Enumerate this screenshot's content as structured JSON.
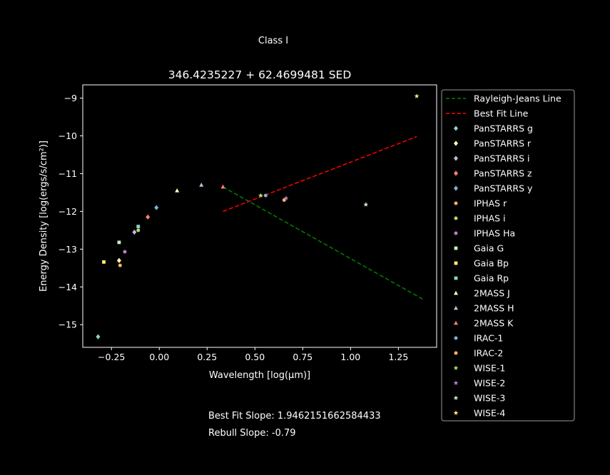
{
  "suptitle": "Class I",
  "notes": {
    "best_fit": "Best Fit Slope: 1.9462151662584433",
    "rebull": "Rebull Slope: -0.79"
  },
  "chart_data": {
    "type": "scatter",
    "title": "346.4235227 + 62.4699481 SED",
    "xlabel": "Wavelength [log(μm)]",
    "ylabel": "Energy Density [log(ergs/s/cm²)]",
    "xlim": [
      -0.4,
      1.45
    ],
    "ylim": [
      -15.6,
      -8.65
    ],
    "xticks": [
      -0.25,
      0.0,
      0.25,
      0.5,
      0.75,
      1.0,
      1.25
    ],
    "xtick_labels": [
      "−0.25",
      "0.00",
      "0.25",
      "0.50",
      "0.75",
      "1.00",
      "1.25"
    ],
    "yticks": [
      -15,
      -14,
      -13,
      -12,
      -11,
      -10,
      -9
    ],
    "ytick_labels": [
      "−15",
      "−14",
      "−13",
      "−12",
      "−11",
      "−10",
      "−9"
    ],
    "grid": false,
    "legend_position": "outside-right",
    "lines": [
      {
        "name": "Rayleigh-Jeans Line",
        "color": "#008000",
        "dash": "dashed",
        "x": [
          0.333,
          1.38
        ],
        "y": [
          -11.35,
          -14.33
        ]
      },
      {
        "name": "Best Fit Line",
        "color": "#ff0000",
        "dash": "dashed",
        "x": [
          0.333,
          1.346
        ],
        "y": [
          -12.0,
          -10.02
        ]
      }
    ],
    "series": [
      {
        "name": "PanSTARRS g",
        "marker": "diamond",
        "color": "#8dd3c7",
        "x": [
          -0.32
        ],
        "y": [
          -15.32
        ]
      },
      {
        "name": "PanSTARRS r",
        "marker": "diamond",
        "color": "#ffffb3",
        "x": [
          -0.21
        ],
        "y": [
          -13.3
        ]
      },
      {
        "name": "PanSTARRS i",
        "marker": "diamond",
        "color": "#bebada",
        "x": [
          -0.13
        ],
        "y": [
          -12.55
        ]
      },
      {
        "name": "PanSTARRS z",
        "marker": "diamond",
        "color": "#fb8072",
        "x": [
          -0.06
        ],
        "y": [
          -12.15
        ]
      },
      {
        "name": "PanSTARRS y",
        "marker": "diamond",
        "color": "#80b1d3",
        "x": [
          -0.015
        ],
        "y": [
          -11.9
        ]
      },
      {
        "name": "IPHAS r",
        "marker": "circle",
        "color": "#fdb462",
        "x": [
          -0.205
        ],
        "y": [
          -13.43
        ]
      },
      {
        "name": "IPHAS i",
        "marker": "circle",
        "color": "#b3de69",
        "x": [
          -0.11
        ],
        "y": [
          -12.5
        ]
      },
      {
        "name": "IPHAS Ha",
        "marker": "circle",
        "color": "#bc80bd",
        "x": [
          -0.18
        ],
        "y": [
          -13.07
        ]
      },
      {
        "name": "Gaia G",
        "marker": "square",
        "color": "#ccebc5",
        "x": [
          -0.21
        ],
        "y": [
          -12.82
        ]
      },
      {
        "name": "Gaia Bp",
        "marker": "square",
        "color": "#ffed6f",
        "x": [
          -0.29
        ],
        "y": [
          -13.34
        ]
      },
      {
        "name": "Gaia Rp",
        "marker": "square",
        "color": "#8dd3c7",
        "x": [
          -0.11
        ],
        "y": [
          -12.4
        ]
      },
      {
        "name": "2MASS J",
        "marker": "triangle",
        "color": "#ffffb3",
        "x": [
          0.093
        ],
        "y": [
          -11.45
        ]
      },
      {
        "name": "2MASS H",
        "marker": "triangle",
        "color": "#bebada",
        "x": [
          0.22
        ],
        "y": [
          -11.3
        ]
      },
      {
        "name": "2MASS K",
        "marker": "triangle",
        "color": "#fb8072",
        "x": [
          0.333
        ],
        "y": [
          -11.35
        ]
      },
      {
        "name": "IRAC-1",
        "marker": "circle",
        "color": "#80b1d3",
        "x": [
          0.556
        ],
        "y": [
          -11.58
        ]
      },
      {
        "name": "IRAC-2",
        "marker": "circle",
        "color": "#fdb462",
        "x": [
          0.653
        ],
        "y": [
          -11.7
        ]
      },
      {
        "name": "WISE-1",
        "marker": "star",
        "color": "#b3de69",
        "x": [
          0.53
        ],
        "y": [
          -11.58
        ]
      },
      {
        "name": "WISE-2",
        "marker": "star",
        "color": "#bc80bd",
        "x": [
          0.663
        ],
        "y": [
          -11.65
        ]
      },
      {
        "name": "WISE-3",
        "marker": "star",
        "color": "#ccebc5",
        "x": [
          1.08
        ],
        "y": [
          -11.82
        ]
      },
      {
        "name": "WISE-4",
        "marker": "star",
        "color": "#ffed6f",
        "x": [
          1.346
        ],
        "y": [
          -8.95
        ]
      }
    ]
  }
}
